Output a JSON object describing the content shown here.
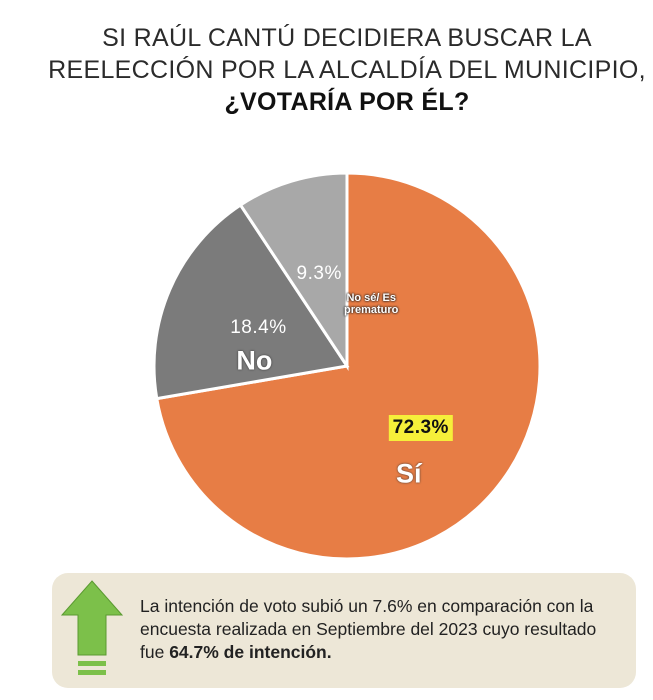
{
  "chart_data": {
    "type": "pie",
    "title_lines": [
      "SI RAÚL CANTÚ DECIDIERA BUSCAR LA",
      "REELECCIÓN POR LA ALCALDÍA DEL MUNICIPIO,",
      "¿VOTARÍA POR ÉL?"
    ],
    "categories": [
      "Sí",
      "No",
      "No sé/ Es prematuro"
    ],
    "values": [
      72.3,
      18.4,
      9.3
    ],
    "value_labels": [
      "72.3%",
      "18.4%",
      "9.3%"
    ],
    "colors": [
      "#e77d45",
      "#7b7b7b",
      "#a8a8a8"
    ]
  },
  "note": {
    "text": "La intención de voto subió un 7.6% en comparación con la encuesta realizada en Septiembre del 2023 cuyo resultado fue",
    "bold": "64.7% de intención."
  }
}
